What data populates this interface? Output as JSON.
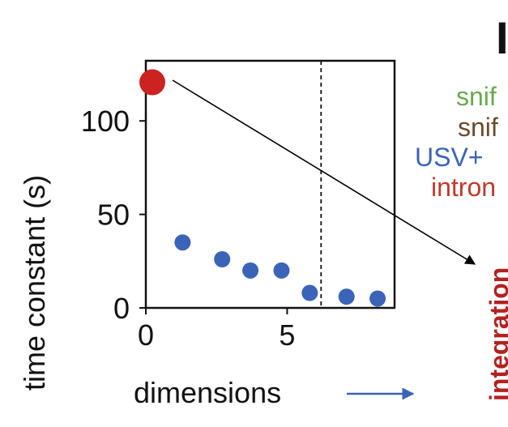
{
  "chart_data": {
    "type": "scatter",
    "title": "",
    "xlabel": "dimensions",
    "ylabel": "time constant (s)",
    "xlim": [
      0,
      8.8
    ],
    "ylim": [
      0,
      130
    ],
    "xticks": [
      0,
      5
    ],
    "yticks": [
      0,
      50,
      100
    ],
    "threshold_x": 6.2,
    "highlight_point": {
      "x": 0,
      "y": 125,
      "color": "#cc2222"
    },
    "series": [
      {
        "color": "#3b63b8",
        "x": [
          1.3,
          2.7,
          3.7,
          4.8,
          5.8,
          7.1,
          8.2
        ],
        "y": [
          35,
          26,
          20,
          20,
          8,
          6,
          5
        ]
      }
    ],
    "grid": false
  },
  "legend": {
    "items": [
      {
        "text": "snif",
        "color": "#6aa84f"
      },
      {
        "text": "snif",
        "color": "#6b4a2b"
      },
      {
        "text": "USV+",
        "color": "#3b63b8"
      },
      {
        "text": "intron",
        "color": "#c0392b"
      }
    ]
  },
  "panel_letter": "I",
  "side_text": {
    "text": "integration",
    "color": "#b22222"
  }
}
